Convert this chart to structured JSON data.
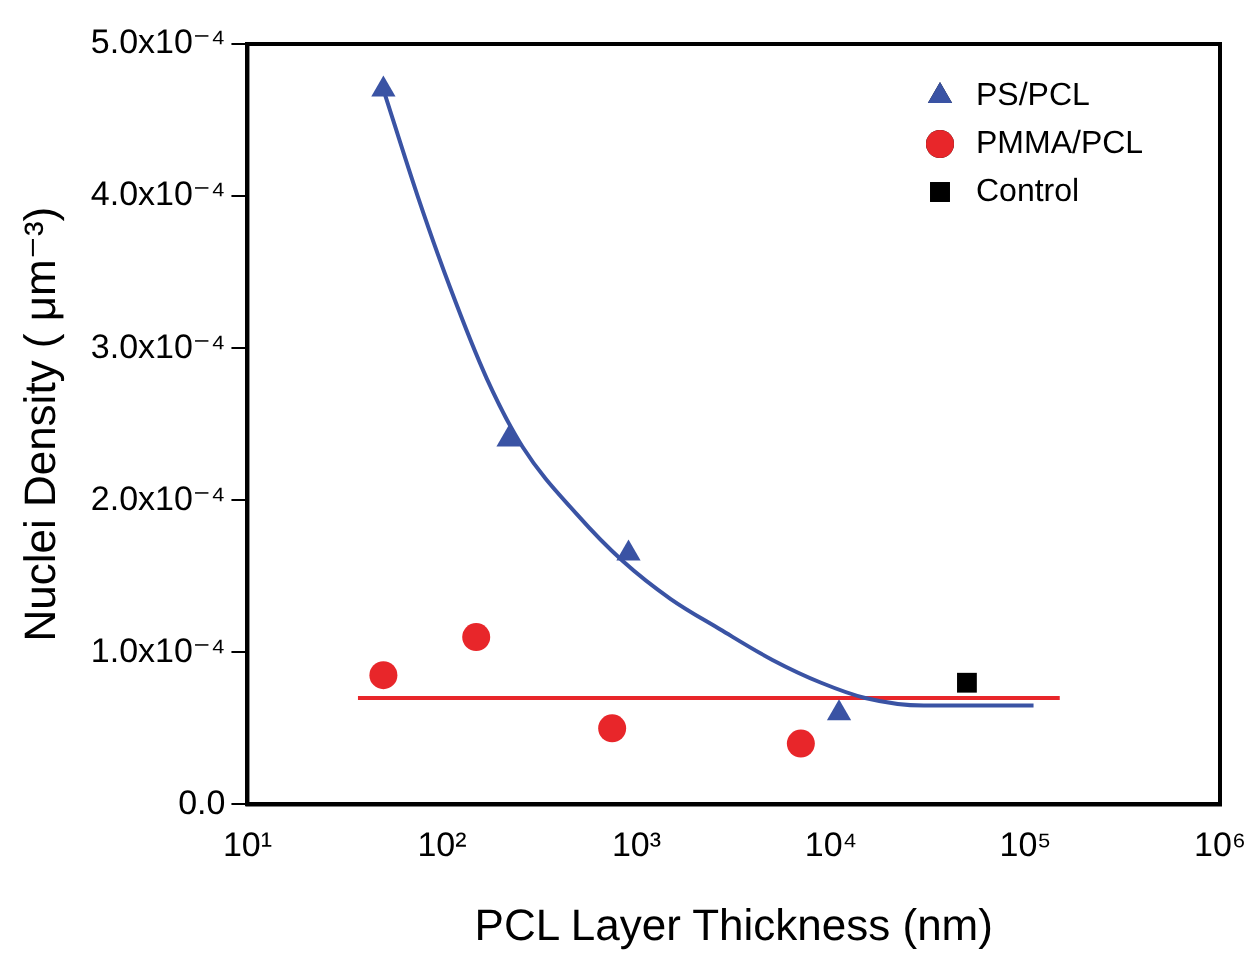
{
  "chart_data": {
    "type": "scatter",
    "xlabel": "PCL Layer Thickness (nm)",
    "ylabel": "Nuclei Density ( μm⁻³)",
    "log": "x",
    "xlim": [
      10,
      1000000
    ],
    "xticks": [
      {
        "value": 10,
        "label": "10¹"
      },
      {
        "value": 100,
        "label": "10²"
      },
      {
        "value": 1000,
        "label": "10³"
      },
      {
        "value": 10000,
        "label": "10⁴"
      },
      {
        "value": 100000,
        "label": "10⁵"
      },
      {
        "value": 1000000,
        "label": "10⁶"
      }
    ],
    "ylim": [
      0,
      0.0005
    ],
    "yticks": [
      {
        "value": 0,
        "label": "0.0"
      },
      {
        "value": 0.0001,
        "label": "1.0x10⁻⁴"
      },
      {
        "value": 0.0002,
        "label": "2.0x10⁻⁴"
      },
      {
        "value": 0.0003,
        "label": "3.0x10⁻⁴"
      },
      {
        "value": 0.0004,
        "label": "4.0x10⁻⁴"
      },
      {
        "value": 0.0005,
        "label": "5.0x10⁻⁴"
      }
    ],
    "grid": false,
    "legend": "top right",
    "series": [
      {
        "type": "line",
        "color": "#3a53a4",
        "marker": "none",
        "line_style": "solid",
        "x": [
          50,
          75,
          110,
          170,
          260,
          500,
          850,
          1500,
          2700,
          5000,
          8900,
          15000,
          30000,
          60000,
          110000
        ],
        "values": [
          0.00047,
          0.0004,
          0.00034,
          0.00028,
          0.000235,
          0.00019,
          0.00016,
          0.000135,
          0.000115,
          9.5e-05,
          8e-05,
          7e-05,
          6.5e-05,
          6.5e-05,
          6.5e-05
        ]
      },
      {
        "type": "line",
        "color": "#e8262a",
        "marker": "none",
        "line_style": "solid",
        "x": [
          37,
          150000
        ],
        "values": [
          7e-05,
          7e-05
        ]
      },
      {
        "name": "PS/PCL",
        "color": "#3a53a4",
        "marker": "triangle",
        "x": [
          50,
          220,
          910,
          11000
        ],
        "values": [
          0.00047,
          0.00024,
          0.000165,
          6e-05
        ]
      },
      {
        "name": "PMMA/PCL",
        "color": "#e8262a",
        "marker": "circle",
        "x": [
          50,
          150,
          750,
          7000
        ],
        "values": [
          8.5e-05,
          0.00011,
          5e-05,
          4e-05
        ]
      },
      {
        "name": "Control",
        "color": "#000000",
        "marker": "square",
        "x": [
          50000
        ],
        "values": [
          8e-05
        ]
      }
    ]
  }
}
